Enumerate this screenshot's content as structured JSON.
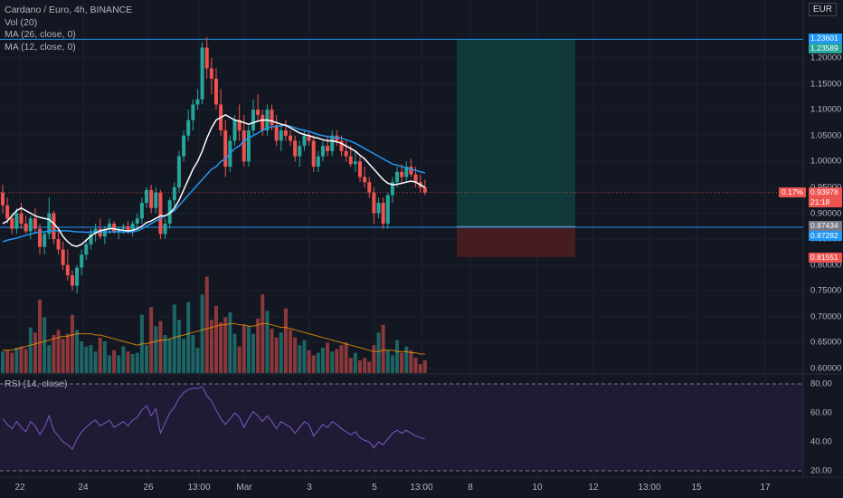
{
  "legend": {
    "symbol": "Cardano / Euro, 4h, BINANCE",
    "vol": "Vol (20)",
    "ma26": "MA (26, close, 0)",
    "ma12": "MA (12, close, 0)",
    "rsi": "RSI (14, close)"
  },
  "currency": "EUR",
  "colors": {
    "background": "#131722",
    "up": "#26a69a",
    "down": "#ef5350",
    "ma26": "#2196f3",
    "ma12": "#ffffff",
    "vol_ma": "#ff9800",
    "hline": "#2196f3",
    "rsi": "#7e57c2",
    "target_zone": "#0f3a3a",
    "stop_zone": "#4a1c22"
  },
  "price_axis": {
    "ticks": [
      "1.20000",
      "1.15000",
      "1.10000",
      "1.05000",
      "1.00000",
      "0.95000",
      "0.90000",
      "0.85000",
      "0.80000",
      "0.75000",
      "0.70000",
      "0.65000",
      "0.60000"
    ],
    "labels": [
      {
        "text": "1.23601",
        "color": "#2196f3"
      },
      {
        "text": "1.23589",
        "color": "#26a69a"
      },
      {
        "text": "0.93978",
        "color": "#ef5350"
      },
      {
        "text": "21:18",
        "color": "#ef5350"
      },
      {
        "text": "0.87434",
        "color": "#787b86"
      },
      {
        "text": "0.87282",
        "color": "#2196f3"
      },
      {
        "text": "0.81551",
        "color": "#ef5350"
      }
    ],
    "pct_change": "0.17%"
  },
  "rsi_axis": {
    "ticks": [
      "80.00",
      "60.00",
      "40.00",
      "20.00"
    ]
  },
  "time_axis": [
    "22",
    "24",
    "26",
    "13:00",
    "Mar",
    "3",
    "5",
    "13:00",
    "8",
    "10",
    "12",
    "13:00",
    "15",
    "17"
  ],
  "chart_data": {
    "type": "candlestick",
    "title": "Cardano / Euro, 4h, BINANCE",
    "ylim": [
      0.59,
      1.275
    ],
    "series": [
      {
        "name": "ADA/EUR",
        "ohlc": [
          [
            0.94,
            0.955,
            0.9,
            0.915
          ],
          [
            0.915,
            0.93,
            0.88,
            0.89
          ],
          [
            0.89,
            0.9,
            0.86,
            0.87
          ],
          [
            0.87,
            0.91,
            0.86,
            0.9
          ],
          [
            0.9,
            0.92,
            0.87,
            0.88
          ],
          [
            0.88,
            0.895,
            0.86,
            0.865
          ],
          [
            0.865,
            0.895,
            0.85,
            0.89
          ],
          [
            0.89,
            0.91,
            0.86,
            0.87
          ],
          [
            0.87,
            0.88,
            0.82,
            0.835
          ],
          [
            0.835,
            0.865,
            0.82,
            0.86
          ],
          [
            0.86,
            0.93,
            0.85,
            0.9
          ],
          [
            0.9,
            0.905,
            0.84,
            0.85
          ],
          [
            0.85,
            0.87,
            0.82,
            0.83
          ],
          [
            0.83,
            0.845,
            0.79,
            0.8
          ],
          [
            0.8,
            0.83,
            0.77,
            0.78
          ],
          [
            0.78,
            0.79,
            0.75,
            0.76
          ],
          [
            0.76,
            0.8,
            0.745,
            0.795
          ],
          [
            0.795,
            0.83,
            0.78,
            0.82
          ],
          [
            0.82,
            0.85,
            0.81,
            0.84
          ],
          [
            0.84,
            0.87,
            0.83,
            0.86
          ],
          [
            0.86,
            0.88,
            0.845,
            0.87
          ],
          [
            0.87,
            0.89,
            0.85,
            0.855
          ],
          [
            0.855,
            0.875,
            0.84,
            0.87
          ],
          [
            0.87,
            0.89,
            0.86,
            0.88
          ],
          [
            0.88,
            0.885,
            0.86,
            0.865
          ],
          [
            0.865,
            0.875,
            0.85,
            0.87
          ],
          [
            0.87,
            0.88,
            0.86,
            0.875
          ],
          [
            0.875,
            0.885,
            0.86,
            0.865
          ],
          [
            0.865,
            0.885,
            0.855,
            0.88
          ],
          [
            0.88,
            0.9,
            0.87,
            0.89
          ],
          [
            0.89,
            0.93,
            0.88,
            0.92
          ],
          [
            0.92,
            0.95,
            0.91,
            0.945
          ],
          [
            0.945,
            0.955,
            0.9,
            0.91
          ],
          [
            0.91,
            0.95,
            0.9,
            0.94
          ],
          [
            0.94,
            0.945,
            0.85,
            0.86
          ],
          [
            0.86,
            0.89,
            0.85,
            0.88
          ],
          [
            0.88,
            0.93,
            0.87,
            0.925
          ],
          [
            0.925,
            0.96,
            0.91,
            0.95
          ],
          [
            0.95,
            1.02,
            0.94,
            1.01
          ],
          [
            1.01,
            1.06,
            1.0,
            1.05
          ],
          [
            1.05,
            1.1,
            1.04,
            1.08
          ],
          [
            1.08,
            1.12,
            1.06,
            1.11
          ],
          [
            1.11,
            1.14,
            1.1,
            1.12
          ],
          [
            1.12,
            1.23,
            1.11,
            1.22
          ],
          [
            1.22,
            1.24,
            1.16,
            1.18
          ],
          [
            1.18,
            1.2,
            1.13,
            1.16
          ],
          [
            1.16,
            1.18,
            1.1,
            1.11
          ],
          [
            1.11,
            1.14,
            1.05,
            1.06
          ],
          [
            1.06,
            1.08,
            0.97,
            0.99
          ],
          [
            0.99,
            1.05,
            0.98,
            1.04
          ],
          [
            1.04,
            1.09,
            1.03,
            1.08
          ],
          [
            1.08,
            1.11,
            1.04,
            1.06
          ],
          [
            1.06,
            1.09,
            0.99,
            1.0
          ],
          [
            1.0,
            1.07,
            0.99,
            1.06
          ],
          [
            1.06,
            1.12,
            1.05,
            1.1
          ],
          [
            1.1,
            1.13,
            1.08,
            1.09
          ],
          [
            1.09,
            1.1,
            1.05,
            1.06
          ],
          [
            1.06,
            1.11,
            1.05,
            1.1
          ],
          [
            1.1,
            1.11,
            1.06,
            1.07
          ],
          [
            1.07,
            1.09,
            1.03,
            1.04
          ],
          [
            1.04,
            1.07,
            1.02,
            1.06
          ],
          [
            1.06,
            1.08,
            1.04,
            1.05
          ],
          [
            1.05,
            1.06,
            1.03,
            1.04
          ],
          [
            1.04,
            1.05,
            1.0,
            1.01
          ],
          [
            1.01,
            1.04,
            0.99,
            1.03
          ],
          [
            1.03,
            1.06,
            1.02,
            1.05
          ],
          [
            1.05,
            1.06,
            1.03,
            1.04
          ],
          [
            1.04,
            1.05,
            0.98,
            0.99
          ],
          [
            0.99,
            1.02,
            0.98,
            1.01
          ],
          [
            1.01,
            1.04,
            1.0,
            1.03
          ],
          [
            1.03,
            1.05,
            1.01,
            1.02
          ],
          [
            1.02,
            1.06,
            1.01,
            1.05
          ],
          [
            1.05,
            1.06,
            1.03,
            1.04
          ],
          [
            1.04,
            1.05,
            1.01,
            1.02
          ],
          [
            1.02,
            1.04,
            1.0,
            1.01
          ],
          [
            1.01,
            1.03,
            0.99,
            0.995
          ],
          [
            0.995,
            1.02,
            0.98,
            1.0
          ],
          [
            1.0,
            1.01,
            0.96,
            0.97
          ],
          [
            0.97,
            0.99,
            0.95,
            0.96
          ],
          [
            0.96,
            0.97,
            0.93,
            0.94
          ],
          [
            0.94,
            0.95,
            0.88,
            0.9
          ],
          [
            0.9,
            0.93,
            0.89,
            0.92
          ],
          [
            0.92,
            0.93,
            0.87,
            0.88
          ],
          [
            0.88,
            0.94,
            0.87,
            0.935
          ],
          [
            0.935,
            0.97,
            0.92,
            0.96
          ],
          [
            0.96,
            0.99,
            0.95,
            0.98
          ],
          [
            0.98,
            0.995,
            0.96,
            0.97
          ],
          [
            0.97,
            1.0,
            0.96,
            0.99
          ],
          [
            0.99,
            1.005,
            0.97,
            0.975
          ],
          [
            0.975,
            0.99,
            0.95,
            0.96
          ],
          [
            0.96,
            0.975,
            0.94,
            0.95
          ],
          [
            0.95,
            0.965,
            0.935,
            0.94
          ]
        ]
      },
      {
        "name": "MA (26, close, 0)",
        "values": [
          0.845,
          0.848,
          0.85,
          0.852,
          0.855,
          0.857,
          0.86,
          0.862,
          0.864,
          0.864,
          0.866,
          0.866,
          0.866,
          0.866,
          0.866,
          0.865,
          0.864,
          0.864,
          0.863,
          0.864,
          0.864,
          0.864,
          0.864,
          0.864,
          0.864,
          0.864,
          0.864,
          0.864,
          0.864,
          0.866,
          0.87,
          0.875,
          0.88,
          0.885,
          0.89,
          0.895,
          0.9,
          0.905,
          0.915,
          0.925,
          0.935,
          0.945,
          0.955,
          0.965,
          0.975,
          0.985,
          0.99,
          1.0,
          1.005,
          1.015,
          1.025,
          1.03,
          1.04,
          1.045,
          1.05,
          1.055,
          1.06,
          1.065,
          1.067,
          1.068,
          1.069,
          1.07,
          1.068,
          1.065,
          1.062,
          1.06,
          1.058,
          1.055,
          1.052,
          1.05,
          1.048,
          1.047,
          1.046,
          1.045,
          1.042,
          1.039,
          1.035,
          1.03,
          1.025,
          1.02,
          1.015,
          1.01,
          1.005,
          1.0,
          0.995,
          0.993,
          0.99,
          0.988,
          0.985,
          0.983,
          0.98,
          0.978
        ]
      },
      {
        "name": "MA (12, close, 0)",
        "values": [
          0.88,
          0.885,
          0.895,
          0.905,
          0.91,
          0.905,
          0.9,
          0.895,
          0.892,
          0.89,
          0.888,
          0.88,
          0.87,
          0.855,
          0.845,
          0.838,
          0.836,
          0.84,
          0.848,
          0.856,
          0.862,
          0.866,
          0.868,
          0.87,
          0.87,
          0.868,
          0.867,
          0.866,
          0.867,
          0.87,
          0.875,
          0.882,
          0.885,
          0.89,
          0.895,
          0.895,
          0.9,
          0.91,
          0.925,
          0.945,
          0.965,
          0.985,
          1.0,
          1.02,
          1.045,
          1.065,
          1.08,
          1.085,
          1.09,
          1.085,
          1.08,
          1.078,
          1.075,
          1.072,
          1.075,
          1.078,
          1.08,
          1.08,
          1.078,
          1.075,
          1.072,
          1.07,
          1.065,
          1.06,
          1.055,
          1.052,
          1.05,
          1.047,
          1.045,
          1.042,
          1.04,
          1.04,
          1.038,
          1.035,
          1.03,
          1.025,
          1.02,
          1.012,
          1.005,
          0.995,
          0.985,
          0.975,
          0.965,
          0.958,
          0.955,
          0.956,
          0.958,
          0.96,
          0.962,
          0.96,
          0.955,
          0.95
        ]
      }
    ],
    "volume": [
      0.17,
      0.18,
      0.16,
      0.2,
      0.21,
      0.19,
      0.36,
      0.32,
      0.58,
      0.44,
      0.22,
      0.3,
      0.34,
      0.27,
      0.31,
      0.46,
      0.34,
      0.25,
      0.21,
      0.22,
      0.17,
      0.28,
      0.25,
      0.14,
      0.18,
      0.14,
      0.21,
      0.17,
      0.15,
      0.16,
      0.46,
      0.22,
      0.52,
      0.37,
      0.41,
      0.3,
      0.27,
      0.54,
      0.42,
      0.27,
      0.56,
      0.3,
      0.2,
      0.62,
      0.76,
      0.42,
      0.53,
      0.4,
      0.44,
      0.48,
      0.31,
      0.21,
      0.38,
      0.37,
      0.31,
      0.43,
      0.62,
      0.49,
      0.35,
      0.28,
      0.32,
      0.51,
      0.34,
      0.28,
      0.22,
      0.26,
      0.18,
      0.14,
      0.16,
      0.2,
      0.24,
      0.17,
      0.19,
      0.22,
      0.24,
      0.12,
      0.16,
      0.1,
      0.12,
      0.09,
      0.22,
      0.32,
      0.38,
      0.18,
      0.14,
      0.26,
      0.16,
      0.21,
      0.18,
      0.12,
      0.07,
      0.1
    ],
    "volume_up": [
      true,
      false,
      false,
      true,
      false,
      false,
      true,
      false,
      false,
      true,
      true,
      false,
      false,
      false,
      false,
      false,
      true,
      true,
      true,
      true,
      true,
      false,
      true,
      true,
      false,
      true,
      true,
      false,
      true,
      true,
      true,
      true,
      false,
      true,
      false,
      true,
      true,
      true,
      true,
      true,
      true,
      true,
      true,
      true,
      false,
      false,
      false,
      false,
      false,
      true,
      true,
      false,
      false,
      true,
      true,
      false,
      false,
      true,
      false,
      false,
      true,
      false,
      false,
      false,
      true,
      true,
      false,
      false,
      true,
      true,
      false,
      true,
      false,
      false,
      false,
      false,
      true,
      false,
      false,
      false,
      false,
      true,
      false,
      true,
      true,
      true,
      false,
      true,
      false,
      false,
      false,
      false
    ],
    "volume_ma": [
      0.18,
      0.18,
      0.18,
      0.19,
      0.2,
      0.21,
      0.22,
      0.23,
      0.24,
      0.25,
      0.26,
      0.27,
      0.28,
      0.29,
      0.29,
      0.3,
      0.31,
      0.31,
      0.31,
      0.31,
      0.3,
      0.3,
      0.29,
      0.28,
      0.27,
      0.26,
      0.25,
      0.24,
      0.23,
      0.22,
      0.23,
      0.23,
      0.24,
      0.25,
      0.26,
      0.26,
      0.27,
      0.28,
      0.29,
      0.3,
      0.31,
      0.32,
      0.33,
      0.34,
      0.35,
      0.36,
      0.37,
      0.38,
      0.38,
      0.39,
      0.39,
      0.38,
      0.38,
      0.37,
      0.37,
      0.38,
      0.39,
      0.39,
      0.38,
      0.37,
      0.36,
      0.36,
      0.35,
      0.34,
      0.33,
      0.32,
      0.31,
      0.3,
      0.29,
      0.28,
      0.27,
      0.26,
      0.25,
      0.24,
      0.23,
      0.22,
      0.21,
      0.2,
      0.19,
      0.18,
      0.17,
      0.17,
      0.18,
      0.18,
      0.18,
      0.17,
      0.17,
      0.17,
      0.16,
      0.16,
      0.15,
      0.15
    ],
    "rsi": [
      56,
      52,
      49,
      54,
      50,
      47,
      54,
      51,
      45,
      50,
      58,
      48,
      44,
      40,
      38,
      35,
      42,
      47,
      50,
      53,
      55,
      51,
      53,
      55,
      50,
      52,
      54,
      51,
      55,
      57,
      62,
      65,
      58,
      63,
      46,
      53,
      60,
      64,
      70,
      74,
      76,
      77,
      77,
      78,
      72,
      68,
      62,
      56,
      52,
      56,
      60,
      57,
      50,
      56,
      61,
      58,
      54,
      58,
      54,
      49,
      54,
      52,
      50,
      46,
      50,
      54,
      52,
      44,
      48,
      52,
      50,
      54,
      52,
      49,
      47,
      45,
      47,
      43,
      41,
      40,
      36,
      40,
      38,
      42,
      46,
      48,
      46,
      48,
      46,
      44,
      43,
      42
    ],
    "rsi_levels": [
      80,
      20
    ],
    "hlines": [
      1.23601,
      0.87282
    ],
    "position": {
      "entry": 0.87434,
      "target": 1.23589,
      "stop": 0.81551
    },
    "last_price": 0.93978
  }
}
